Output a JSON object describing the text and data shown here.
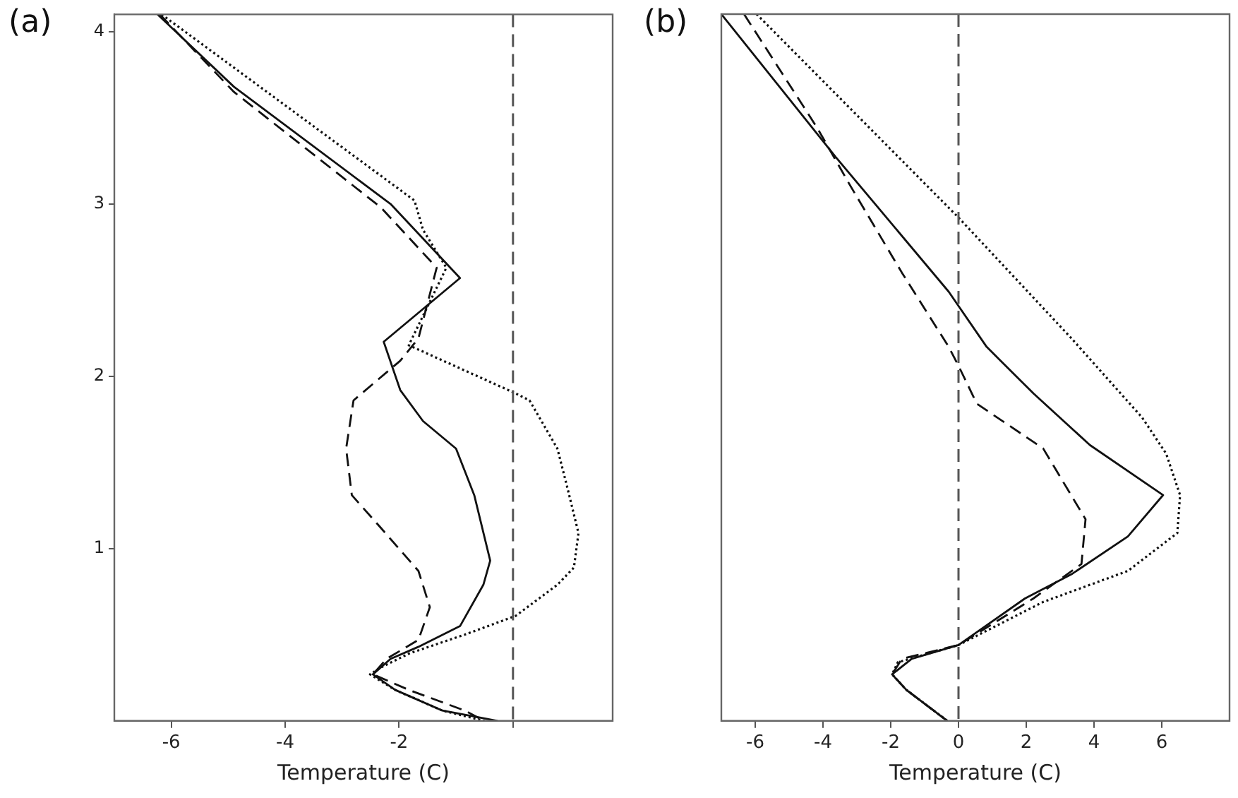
{
  "chart_data": [
    {
      "type": "line",
      "title": "(a)",
      "xlabel": "Temperature (C)",
      "xlim": [
        -7,
        1.75
      ],
      "xticks": [
        -6,
        -4,
        -2,
        {
          "value": 0,
          "label": null
        }
      ],
      "ylim": [
        0,
        4.1
      ],
      "yticks": [
        1,
        2,
        3,
        4
      ],
      "grid": false,
      "legend": false,
      "marker": "none",
      "ref_lines": [
        {
          "axis": "x",
          "value": 0,
          "color": "#555555",
          "line_style": "dashed"
        }
      ],
      "series": [
        {
          "color": "#111111",
          "line_style": "solid",
          "x": [
            -6.24,
            -4.9,
            -2.15,
            -0.93,
            -2.27,
            -1.98,
            -1.58,
            -1.0,
            -0.68,
            -0.4,
            -0.52,
            -0.93,
            -1.66,
            -2.15,
            -2.46,
            -2.07,
            -1.24,
            -0.27
          ],
          "values": [
            4.1,
            3.68,
            3.0,
            2.57,
            2.2,
            1.92,
            1.74,
            1.58,
            1.31,
            0.93,
            0.79,
            0.55,
            0.43,
            0.36,
            0.27,
            0.18,
            0.06,
            0
          ]
        },
        {
          "color": "#111111",
          "line_style": "dotted",
          "x": [
            -6.17,
            -1.73,
            -1.58,
            -1.17,
            -1.83,
            0.05,
            0.29,
            0.78,
            0.95,
            1.15,
            1.07,
            0.78,
            0.05,
            -0.85,
            -1.83,
            -2.32,
            -2.51,
            -2.07,
            -1.24,
            -0.5
          ],
          "values": [
            4.1,
            3.02,
            2.85,
            2.63,
            2.18,
            1.9,
            1.86,
            1.58,
            1.36,
            1.09,
            0.89,
            0.79,
            0.61,
            0.5,
            0.39,
            0.31,
            0.27,
            0.18,
            0.06,
            0
          ]
        },
        {
          "color": "#111111",
          "line_style": "dashed",
          "x": [
            -6.2,
            -4.9,
            -2.32,
            -1.34,
            -1.66,
            -1.98,
            -2.8,
            -2.93,
            -2.83,
            -2.32,
            -1.66,
            -1.46,
            -1.66,
            -2.22,
            -2.46,
            -1.83,
            -0.85,
            -0.5
          ],
          "values": [
            4.1,
            3.65,
            2.98,
            2.63,
            2.22,
            2.09,
            1.86,
            1.58,
            1.31,
            1.12,
            0.87,
            0.66,
            0.47,
            0.36,
            0.27,
            0.18,
            0.06,
            0
          ]
        }
      ]
    },
    {
      "type": "line",
      "title": "(b)",
      "xlabel": "Temperature (C)",
      "xlim": [
        -7,
        8
      ],
      "xticks": [
        -6,
        -4,
        -2,
        0,
        2,
        4,
        6
      ],
      "ylim": [
        0,
        4.1
      ],
      "yticks": [
        1,
        2,
        3,
        4
      ],
      "tick_labels": "x",
      "grid": false,
      "legend": false,
      "marker": "none",
      "ref_lines": [
        {
          "axis": "x",
          "value": 0,
          "color": "#555555",
          "line_style": "dashed"
        }
      ],
      "series": [
        {
          "color": "#111111",
          "line_style": "solid",
          "x": [
            -7.0,
            -3.62,
            -0.29,
            0.83,
            2.21,
            3.88,
            6.04,
            5.0,
            3.33,
            1.96,
            0,
            -1.38,
            -1.96,
            -1.54,
            -0.33
          ],
          "values": [
            4.1,
            3.27,
            2.49,
            2.17,
            1.9,
            1.6,
            1.31,
            1.07,
            0.85,
            0.71,
            0.44,
            0.36,
            0.27,
            0.18,
            0
          ]
        },
        {
          "color": "#111111",
          "line_style": "dotted",
          "x": [
            -5.96,
            0,
            1.38,
            3.33,
            5.42,
            6.13,
            6.54,
            6.46,
            5.0,
            2.5,
            0,
            -1.79,
            -1.96,
            -1.54,
            -0.33
          ],
          "values": [
            4.1,
            2.92,
            2.63,
            2.22,
            1.76,
            1.55,
            1.31,
            1.09,
            0.87,
            0.69,
            0.44,
            0.34,
            0.27,
            0.18,
            0
          ]
        },
        {
          "color": "#111111",
          "line_style": "dashed",
          "x": [
            -6.33,
            -4.17,
            -3.21,
            -1.67,
            -0.29,
            0,
            0.54,
            2.5,
            3.75,
            3.63,
            2.21,
            0,
            -1.67,
            -1.96,
            -1.54,
            -0.33
          ],
          "values": [
            4.1,
            3.44,
            3.11,
            2.6,
            2.17,
            2.06,
            1.84,
            1.58,
            1.17,
            0.91,
            0.71,
            0.44,
            0.36,
            0.27,
            0.18,
            0
          ]
        }
      ]
    }
  ]
}
